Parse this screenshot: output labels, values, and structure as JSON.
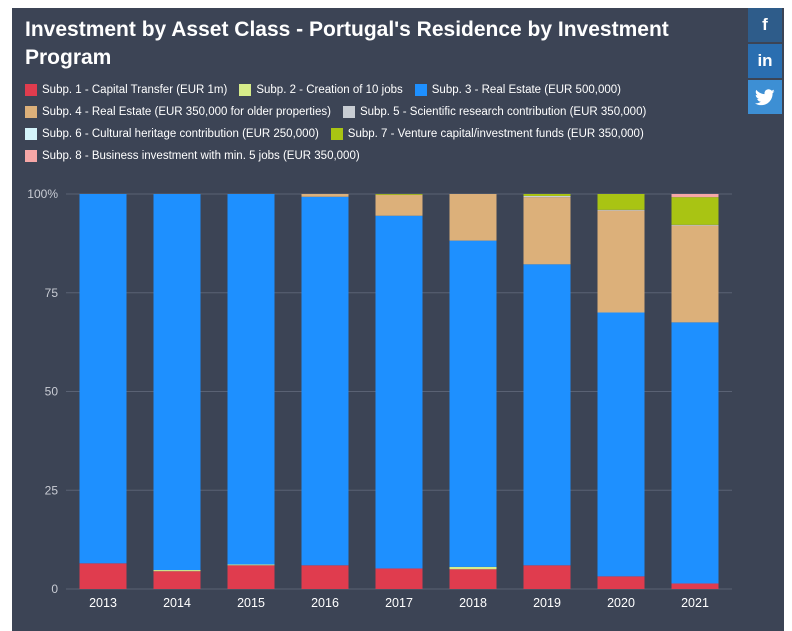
{
  "colors": {
    "background": "#3c4455",
    "grid": "#5a6274",
    "series": [
      "#e03c4e",
      "#d6ec8a",
      "#1e90ff",
      "#dcb07a",
      "#c8cdd3",
      "#d4f4fb",
      "#a9c413",
      "#f6a7a7"
    ]
  },
  "social": [
    {
      "name": "facebook",
      "glyph": "f"
    },
    {
      "name": "linkedin",
      "glyph": "in"
    },
    {
      "name": "twitter",
      "glyph": "twitter-bird"
    }
  ],
  "chart_data": {
    "type": "bar",
    "stacked": true,
    "title": "Investment by Asset Class - Portugal's Residence by Investment Program",
    "categories": [
      "2013",
      "2014",
      "2015",
      "2016",
      "2017",
      "2018",
      "2019",
      "2020",
      "2021"
    ],
    "ylim": [
      0,
      100
    ],
    "yticks": [
      "0",
      "25",
      "50",
      "75",
      "100%"
    ],
    "ytick_values": [
      0,
      25,
      50,
      75,
      100
    ],
    "grid": true,
    "legend_position": "top",
    "series": [
      {
        "name": "Subp. 1 - Capital Transfer (EUR 1m)",
        "values": [
          6.5,
          4.5,
          6,
          6,
          5.2,
          5,
          6,
          3.2,
          1.4
        ]
      },
      {
        "name": "Subp. 2 - Creation of 10 jobs",
        "values": [
          0,
          0.3,
          0.2,
          0,
          0,
          0.6,
          0,
          0,
          0
        ]
      },
      {
        "name": "Subp. 3 - Real Estate (EUR 500,000)",
        "values": [
          93.5,
          95.2,
          93.8,
          93.3,
          89.3,
          82.6,
          76.2,
          66.8,
          66.1
        ]
      },
      {
        "name": "Subp. 4 - Real Estate (EUR 350,000 for older properties)",
        "values": [
          0,
          0,
          0,
          0.7,
          5.3,
          11.8,
          17,
          25.8,
          24.5
        ]
      },
      {
        "name": "Subp. 5 - Scientific research contribution (EUR 350,000)",
        "values": [
          0,
          0,
          0,
          0,
          0,
          0,
          0.3,
          0.2,
          0.2
        ]
      },
      {
        "name": "Subp. 6 - Cultural heritage contribution (EUR 250,000)",
        "values": [
          0,
          0,
          0,
          0,
          0,
          0,
          0,
          0,
          0
        ]
      },
      {
        "name": "Subp. 7 - Venture capital/investment funds (EUR 350,000)",
        "values": [
          0,
          0,
          0,
          0,
          0.2,
          0,
          0.5,
          4,
          7
        ]
      },
      {
        "name": "Subp. 8 - Business investment with min. 5 jobs (EUR 350,000)",
        "values": [
          0,
          0,
          0,
          0,
          0,
          0,
          0,
          0,
          0.8
        ]
      }
    ]
  }
}
